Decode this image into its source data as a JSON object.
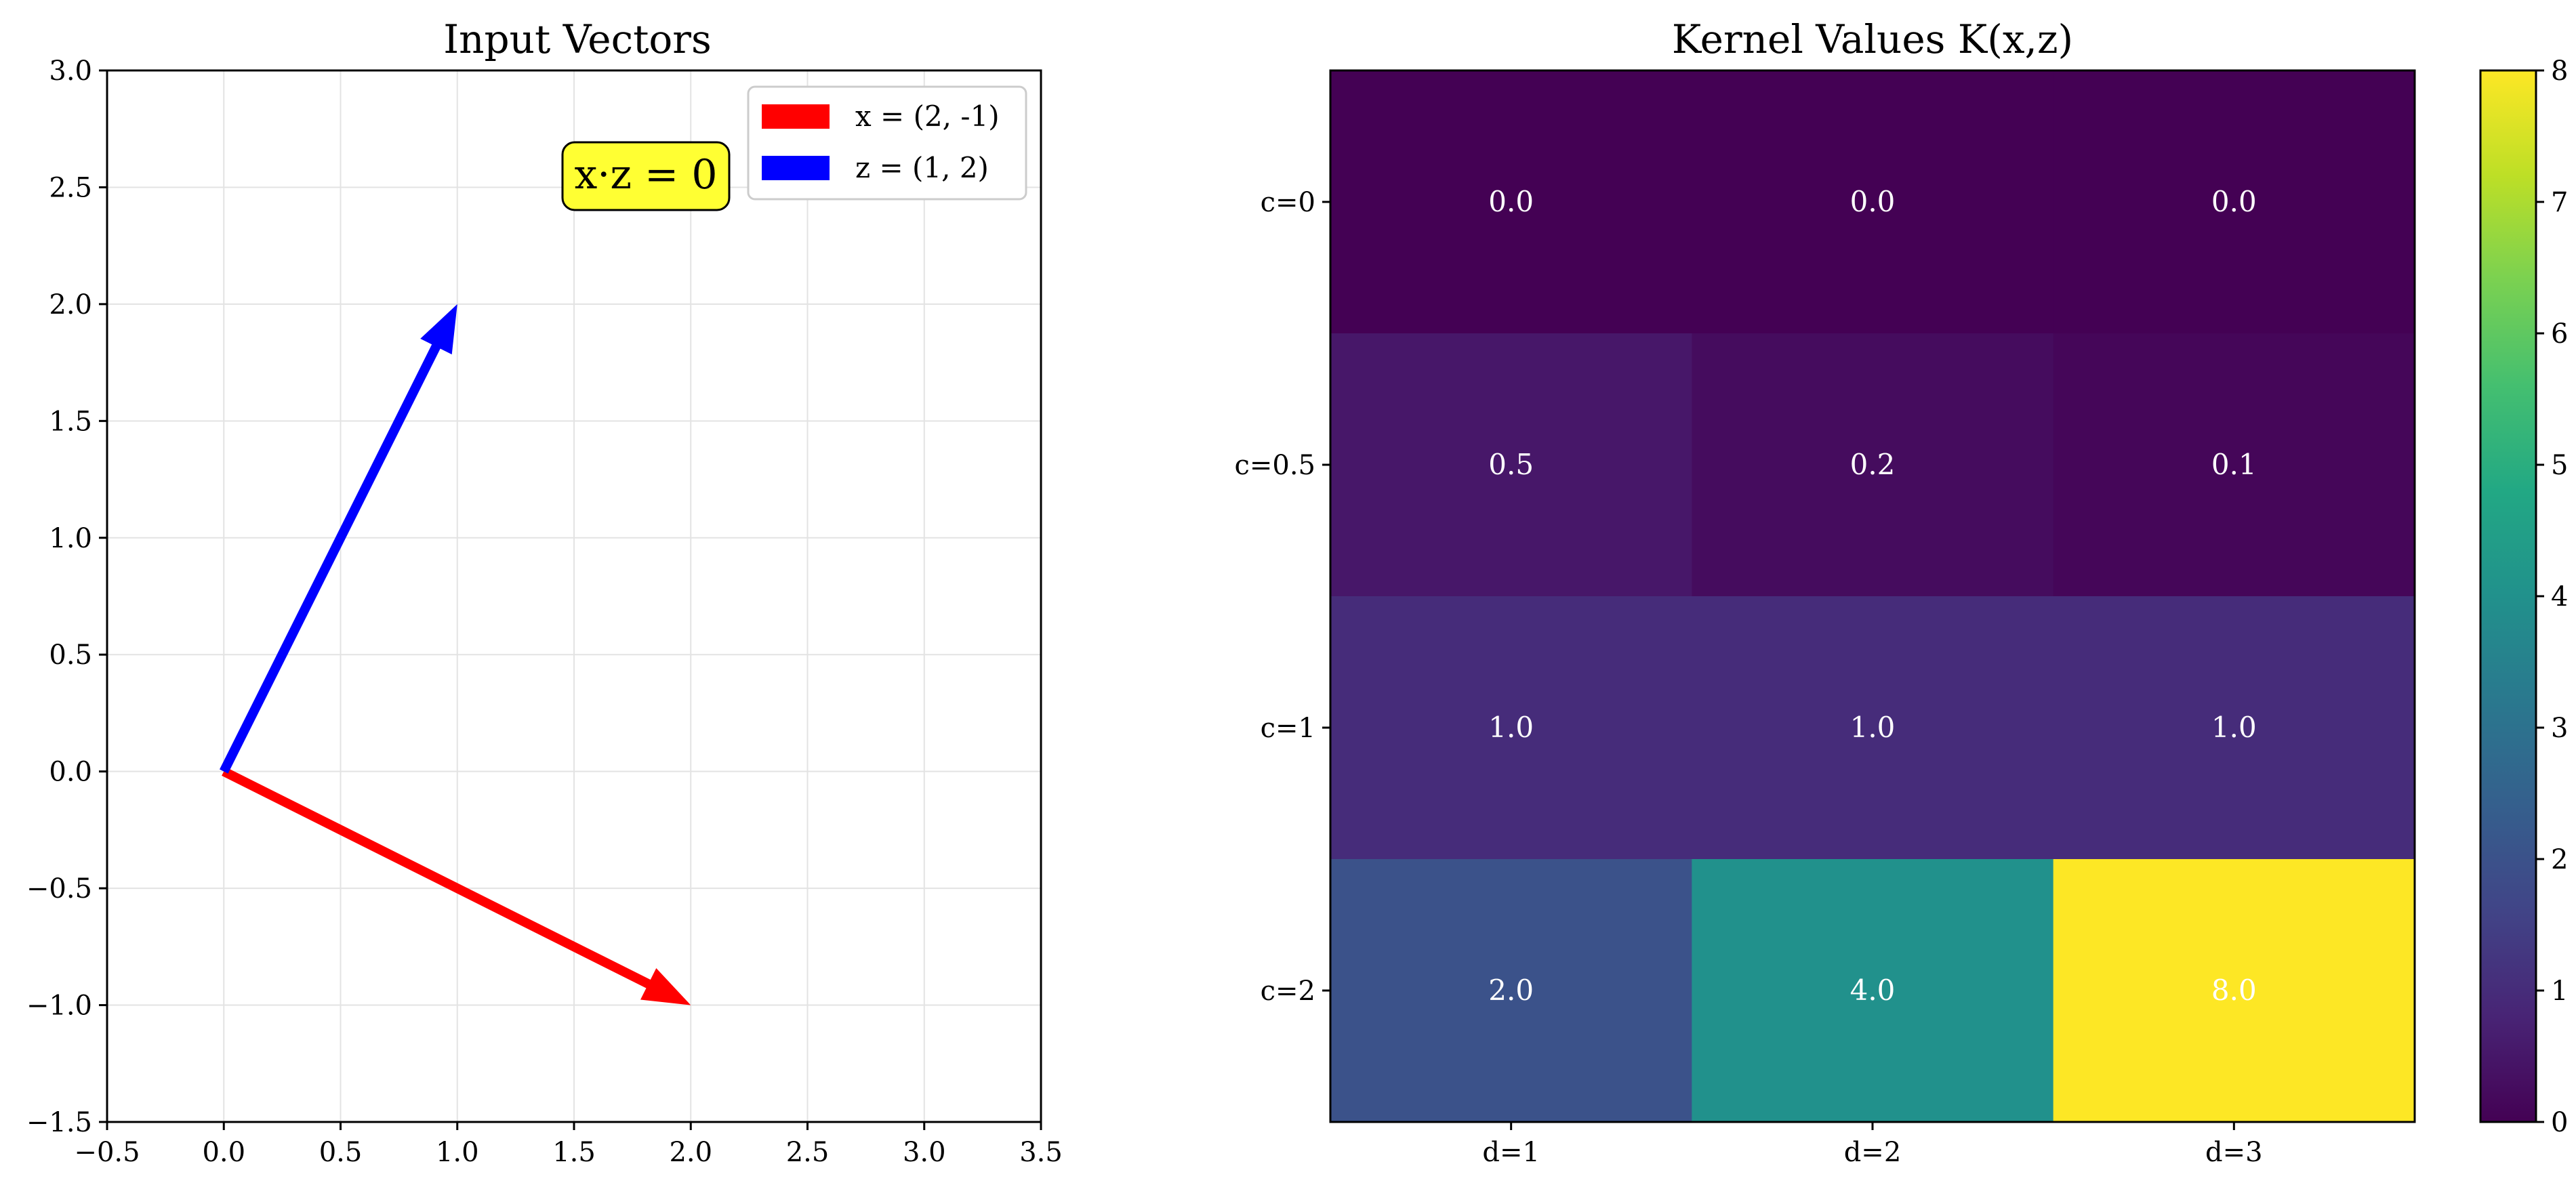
{
  "chart_data": [
    {
      "type": "vector",
      "title": "Input Vectors",
      "xlim": [
        -0.5,
        3.5
      ],
      "ylim": [
        -1.5,
        3.0
      ],
      "xticks": [
        -0.5,
        0.0,
        0.5,
        1.0,
        1.5,
        2.0,
        2.5,
        3.0,
        3.5
      ],
      "yticks": [
        -1.5,
        -1.0,
        -0.5,
        0.0,
        0.5,
        1.0,
        1.5,
        2.0,
        2.5,
        3.0
      ],
      "xtick_labels": [
        "−0.5",
        "0.0",
        "0.5",
        "1.0",
        "1.5",
        "2.0",
        "2.5",
        "3.0",
        "3.5"
      ],
      "ytick_labels": [
        "−1.5",
        "−1.0",
        "−0.5",
        "0.0",
        "0.5",
        "1.0",
        "1.5",
        "2.0",
        "2.5",
        "3.0"
      ],
      "grid": true,
      "legend_position": "top-right",
      "series": [
        {
          "name": "x = (2, -1)",
          "origin": [
            0,
            0
          ],
          "vector": [
            2,
            -1
          ],
          "color": "#ff0000"
        },
        {
          "name": "z = (1, 2)",
          "origin": [
            0,
            0
          ],
          "vector": [
            1,
            2
          ],
          "color": "#0000ff"
        }
      ],
      "annotation": {
        "text": "x·z = 0",
        "x": 1.85,
        "y": 2.55,
        "bg_color": "#ffff33"
      }
    },
    {
      "type": "heatmap",
      "title": "Kernel Values K(x,z)",
      "columns": [
        "d=1",
        "d=2",
        "d=3"
      ],
      "rows": [
        "c=0",
        "c=0.5",
        "c=1",
        "c=2"
      ],
      "values": [
        [
          0.0,
          0.0,
          0.0
        ],
        [
          0.5,
          0.25,
          0.125
        ],
        [
          1.0,
          1.0,
          1.0
        ],
        [
          2.0,
          4.0,
          8.0
        ]
      ],
      "cell_labels": [
        [
          "0.0",
          "0.0",
          "0.0"
        ],
        [
          "0.5",
          "0.2",
          "0.1"
        ],
        [
          "1.0",
          "1.0",
          "1.0"
        ],
        [
          "2.0",
          "4.0",
          "8.0"
        ]
      ],
      "colormap": "viridis",
      "colorbar": {
        "min": 0,
        "max": 8,
        "ticks": [
          "0",
          "1",
          "2",
          "3",
          "4",
          "5",
          "6",
          "7",
          "8"
        ]
      }
    }
  ]
}
